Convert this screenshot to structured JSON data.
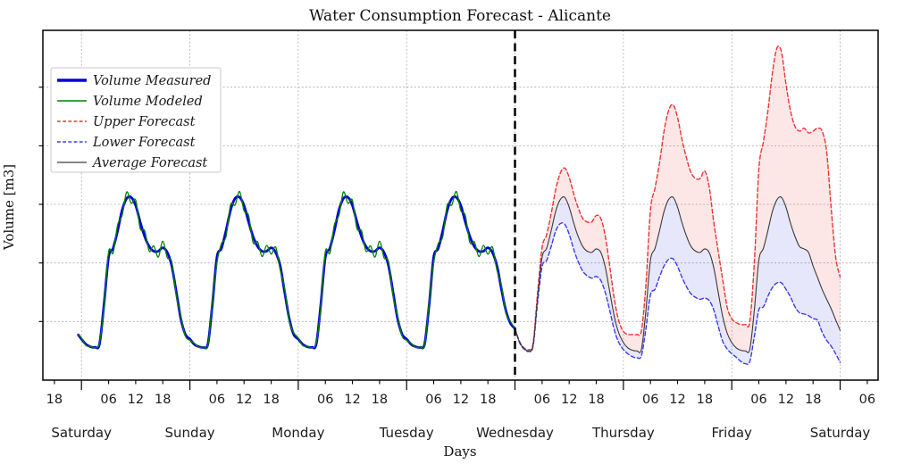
{
  "header": {
    "title": "Water Consumption Forecast - Alicante"
  },
  "axes": {
    "ylabel": "Volume [m3]",
    "xlabel": "Days"
  },
  "legend": {
    "items": [
      "Volume Measured",
      "Volume Modeled",
      "Upper Forecast",
      "Lower Forecast",
      "Average Forecast"
    ]
  },
  "chart_data": {
    "type": "line",
    "title": "Water Consumption Forecast - Alicante",
    "xlabel": "Days",
    "ylabel": "Volume [m3]",
    "x_unit": "hours relative to first Saturday 00:00",
    "x_domain": [
      -8.55,
      176.4
    ],
    "y_domain": [
      0,
      5.97
    ],
    "y_axis_note": "y tick labels are not shown in the figure; values are relative grid units (1 unit per horizontal gridline, plot bottom = 0)",
    "grid": true,
    "legend_position": "upper left",
    "y_gridlines": [
      1,
      2,
      3,
      4,
      5
    ],
    "day_tick_t": [
      0,
      24,
      48,
      72,
      96,
      120,
      144,
      168
    ],
    "day_tick_labels": [
      "Saturday",
      "Sunday",
      "Monday",
      "Tuesday",
      "Wednesday",
      "Thursday",
      "Friday",
      "Saturday"
    ],
    "hour_tick_t": [
      -6,
      6,
      12,
      18,
      30,
      36,
      42,
      54,
      60,
      66,
      78,
      84,
      90,
      102,
      108,
      114,
      126,
      132,
      138,
      150,
      156,
      162,
      174
    ],
    "hour_tick_labels": [
      "18",
      "06",
      "12",
      "18",
      "06",
      "12",
      "18",
      "06",
      "12",
      "18",
      "06",
      "12",
      "18",
      "06",
      "12",
      "18",
      "06",
      "12",
      "18",
      "06",
      "12",
      "18",
      "06"
    ],
    "forecast_boundary_t": 96,
    "colors": {
      "measured": "#0000dd",
      "modeled": "#008000",
      "upper": "#ee3333",
      "lower": "#3b3bf0",
      "average": "#3a3a3a",
      "upper_fill": "rgba(240,60,60,0.13)",
      "lower_fill": "rgba(70,70,230,0.13)",
      "grid": "#ababab",
      "boundary": "#000000",
      "spine": "#000000"
    },
    "x_measured": [
      -0.7,
      0,
      1,
      2,
      3,
      4,
      5,
      6,
      7,
      8,
      9,
      10,
      11,
      12,
      13,
      14,
      15,
      16,
      17,
      18,
      19,
      20,
      21,
      22,
      23,
      24,
      25,
      26,
      27,
      28,
      29,
      30,
      31,
      32,
      33,
      34,
      35,
      36,
      37,
      38,
      39,
      40,
      41,
      42,
      43,
      44,
      45,
      46,
      47,
      48,
      49,
      50,
      51,
      52,
      53,
      54,
      55,
      56,
      57,
      58,
      59,
      60,
      61,
      62,
      63,
      64,
      65,
      66,
      67,
      68,
      69,
      70,
      71,
      72,
      73,
      74,
      75,
      76,
      77,
      78,
      79,
      80,
      81,
      82,
      83,
      84,
      85,
      86,
      87,
      88,
      89,
      90,
      91,
      92,
      93,
      94,
      95,
      96
    ],
    "x_forecast": [
      96,
      97,
      98,
      99,
      100,
      101,
      102,
      103,
      104,
      105,
      106,
      107,
      108,
      109,
      110,
      111,
      112,
      113,
      114,
      115,
      116,
      117,
      118,
      119,
      120,
      121,
      122,
      123,
      124,
      125,
      126,
      127,
      128,
      129,
      130,
      131,
      132,
      133,
      134,
      135,
      136,
      137,
      138,
      139,
      140,
      141,
      142,
      143,
      144,
      145,
      146,
      147,
      148,
      149,
      150,
      151,
      152,
      153,
      154,
      155,
      156,
      157,
      158,
      159,
      160,
      161,
      162,
      163,
      164,
      165,
      166,
      167,
      168
    ],
    "series": [
      {
        "name": "Volume Measured",
        "color": "#0000dd",
        "width": 2.8,
        "dash": "",
        "x": "x_measured",
        "y": [
          0.77,
          0.7,
          0.61,
          0.57,
          0.56,
          0.62,
          1.3,
          2.1,
          2.25,
          2.55,
          2.9,
          3.1,
          3.12,
          2.98,
          2.7,
          2.45,
          2.28,
          2.2,
          2.2,
          2.26,
          2.18,
          1.95,
          1.5,
          1.05,
          0.78,
          0.7,
          0.61,
          0.57,
          0.56,
          0.62,
          1.3,
          2.1,
          2.25,
          2.55,
          2.9,
          3.1,
          3.12,
          2.98,
          2.7,
          2.45,
          2.28,
          2.2,
          2.2,
          2.26,
          2.18,
          1.95,
          1.5,
          1.05,
          0.78,
          0.7,
          0.61,
          0.57,
          0.56,
          0.62,
          1.3,
          2.1,
          2.25,
          2.55,
          2.9,
          3.1,
          3.12,
          2.98,
          2.7,
          2.45,
          2.28,
          2.2,
          2.2,
          2.26,
          2.18,
          1.95,
          1.5,
          1.05,
          0.78,
          0.7,
          0.61,
          0.57,
          0.56,
          0.62,
          1.3,
          2.1,
          2.25,
          2.55,
          2.9,
          3.1,
          3.12,
          2.98,
          2.7,
          2.45,
          2.28,
          2.2,
          2.2,
          2.26,
          2.18,
          1.95,
          1.55,
          1.18,
          0.97,
          0.88
        ]
      },
      {
        "name": "Volume Modeled",
        "color": "#008000",
        "width": 1.3,
        "dash": "",
        "x": "x_measured",
        "y": [
          0.77,
          0.72,
          0.59,
          0.58,
          0.55,
          0.64,
          1.25,
          2.19,
          2.17,
          2.65,
          2.81,
          3.21,
          3.02,
          3.07,
          2.59,
          2.55,
          2.2,
          2.29,
          2.1,
          2.37,
          2.09,
          2.02,
          1.44,
          1.09,
          0.75,
          0.68,
          0.63,
          0.56,
          0.57,
          0.6,
          1.35,
          2.01,
          2.33,
          2.45,
          2.99,
          2.99,
          3.22,
          2.89,
          2.81,
          2.35,
          2.36,
          2.11,
          2.3,
          2.15,
          2.27,
          1.88,
          1.56,
          1.01,
          0.81,
          0.72,
          0.59,
          0.58,
          0.55,
          0.64,
          1.25,
          2.19,
          2.17,
          2.65,
          2.81,
          3.21,
          3.02,
          3.07,
          2.59,
          2.55,
          2.2,
          2.29,
          2.1,
          2.37,
          2.09,
          2.02,
          1.44,
          1.09,
          0.75,
          0.68,
          0.63,
          0.56,
          0.57,
          0.6,
          1.35,
          2.01,
          2.33,
          2.45,
          2.99,
          2.99,
          3.22,
          2.89,
          2.81,
          2.35,
          2.36,
          2.11,
          2.3,
          2.15,
          2.27,
          1.88,
          1.61,
          1.14,
          1.0,
          0.88
        ]
      },
      {
        "name": "Upper Forecast",
        "color": "#ee3333",
        "width": 1.4,
        "dash": "4.5,2.8",
        "x": "x_forecast",
        "y": [
          0.88,
          0.66,
          0.55,
          0.52,
          0.63,
          1.49,
          2.27,
          2.48,
          2.84,
          3.25,
          3.53,
          3.62,
          3.46,
          3.18,
          2.94,
          2.76,
          2.7,
          2.7,
          2.81,
          2.76,
          2.45,
          1.93,
          1.38,
          1.01,
          0.83,
          0.78,
          0.78,
          0.78,
          0.85,
          1.65,
          2.91,
          3.28,
          3.71,
          4.25,
          4.6,
          4.7,
          4.48,
          4.1,
          3.78,
          3.54,
          3.44,
          3.44,
          3.57,
          3.3,
          2.7,
          2.2,
          1.71,
          1.24,
          1.05,
          0.98,
          0.95,
          0.95,
          1.0,
          2.02,
          3.6,
          4.07,
          4.59,
          5.24,
          5.67,
          5.6,
          5.05,
          4.6,
          4.33,
          4.25,
          4.3,
          4.22,
          4.25,
          4.3,
          4.25,
          3.9,
          2.95,
          2.1,
          1.76
        ]
      },
      {
        "name": "Lower Forecast",
        "color": "#3b3bf0",
        "width": 1.4,
        "dash": "4.5,2.8",
        "x": "x_forecast",
        "y": [
          0.88,
          0.64,
          0.53,
          0.49,
          0.58,
          1.32,
          1.94,
          2.04,
          2.28,
          2.54,
          2.67,
          2.66,
          2.49,
          2.23,
          2.02,
          1.86,
          1.78,
          1.74,
          1.77,
          1.7,
          1.49,
          1.18,
          0.85,
          0.64,
          0.52,
          0.45,
          0.4,
          0.38,
          0.42,
          0.89,
          1.46,
          1.55,
          1.76,
          1.95,
          2.06,
          2.07,
          1.94,
          1.75,
          1.59,
          1.47,
          1.41,
          1.38,
          1.4,
          1.36,
          1.2,
          0.92,
          0.66,
          0.53,
          0.45,
          0.39,
          0.32,
          0.28,
          0.32,
          0.75,
          1.2,
          1.25,
          1.43,
          1.58,
          1.66,
          1.66,
          1.55,
          1.42,
          1.25,
          1.15,
          1.13,
          1.1,
          1.05,
          1.02,
          0.82,
          0.68,
          0.58,
          0.45,
          0.3
        ]
      },
      {
        "name": "Average Forecast",
        "color": "#3a3a3a",
        "width": 1.1,
        "dash": "",
        "x": "x_forecast",
        "y": [
          0.88,
          0.65,
          0.54,
          0.5,
          0.6,
          1.4,
          2.1,
          2.25,
          2.55,
          2.88,
          3.08,
          3.12,
          2.95,
          2.68,
          2.45,
          2.28,
          2.2,
          2.18,
          2.24,
          2.18,
          1.92,
          1.5,
          1.08,
          0.8,
          0.64,
          0.55,
          0.51,
          0.5,
          0.53,
          1.2,
          2.05,
          2.25,
          2.55,
          2.88,
          3.08,
          3.12,
          2.95,
          2.68,
          2.45,
          2.28,
          2.2,
          2.18,
          2.24,
          2.18,
          1.92,
          1.5,
          1.08,
          0.8,
          0.64,
          0.55,
          0.51,
          0.5,
          0.53,
          1.2,
          2.05,
          2.25,
          2.55,
          2.88,
          3.08,
          3.12,
          2.95,
          2.68,
          2.45,
          2.28,
          2.24,
          2.18,
          1.95,
          1.75,
          1.55,
          1.38,
          1.22,
          1.03,
          0.85
        ]
      }
    ],
    "fills": [
      {
        "name": "upper-forecast-band",
        "x": "x_forecast",
        "top_series": "Upper Forecast",
        "bottom_series": "Average Forecast",
        "color": "rgba(240,60,60,0.13)"
      },
      {
        "name": "lower-forecast-band",
        "x": "x_forecast",
        "top_series": "Average Forecast",
        "bottom_series": "Lower Forecast",
        "color": "rgba(70,70,230,0.13)"
      }
    ]
  }
}
